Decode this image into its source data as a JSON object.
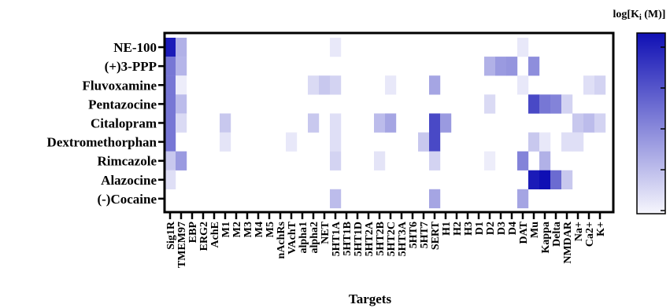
{
  "chart_data": {
    "type": "heatmap",
    "xlabel": "Targets",
    "colorbar_title": "log[Kᵢ (M)]",
    "colorbar_title_parts": {
      "main": "log[K",
      "sub": "i",
      "tail": " (M)]"
    },
    "colorscale": {
      "low": "#f6f6fd",
      "high": "#0f0fb4"
    },
    "grid": false,
    "legend": "colorbar right",
    "rows": [
      "NE-100",
      "(+)3-PPP",
      "Fluvoxamine",
      "Pentazocine",
      "Citalopram",
      "Dextromethorphan",
      "Rimcazole",
      "Alazocine",
      "(-)Cocaine"
    ],
    "columns": [
      "Sig1R",
      "TMEM97",
      "EBP",
      "ERG2",
      "AchE",
      "M1",
      "M2",
      "M3",
      "M4",
      "M5",
      "nAchRs",
      "VAchT",
      "alpha1",
      "alpha2",
      "NET",
      "5HT1A",
      "5HT1B",
      "5HT1D",
      "5HT2A",
      "5HT2B",
      "5HT2C",
      "5HT3A",
      "5HT6",
      "5HT7",
      "SERT",
      "H1",
      "H2",
      "H3",
      "D1",
      "D2",
      "D3",
      "D4",
      "DAT",
      "Mu",
      "Kappa",
      "Delta",
      "NMDAR",
      "Na+",
      "Ca2+",
      "K+"
    ],
    "cells": [
      {
        "row": 0,
        "col": 0,
        "v": 0.95
      },
      {
        "row": 0,
        "col": 1,
        "v": 0.3
      },
      {
        "row": 0,
        "col": 15,
        "v": 0.06
      },
      {
        "row": 0,
        "col": 32,
        "v": 0.06
      },
      {
        "row": 1,
        "col": 0,
        "v": 0.55
      },
      {
        "row": 1,
        "col": 1,
        "v": 0.28
      },
      {
        "row": 1,
        "col": 29,
        "v": 0.3
      },
      {
        "row": 1,
        "col": 30,
        "v": 0.4
      },
      {
        "row": 1,
        "col": 31,
        "v": 0.42
      },
      {
        "row": 1,
        "col": 33,
        "v": 0.45
      },
      {
        "row": 2,
        "col": 0,
        "v": 0.55
      },
      {
        "row": 2,
        "col": 1,
        "v": 0.04
      },
      {
        "row": 2,
        "col": 13,
        "v": 0.12
      },
      {
        "row": 2,
        "col": 14,
        "v": 0.2
      },
      {
        "row": 2,
        "col": 15,
        "v": 0.15
      },
      {
        "row": 2,
        "col": 20,
        "v": 0.06
      },
      {
        "row": 2,
        "col": 24,
        "v": 0.35
      },
      {
        "row": 2,
        "col": 32,
        "v": 0.06
      },
      {
        "row": 2,
        "col": 38,
        "v": 0.1
      },
      {
        "row": 2,
        "col": 39,
        "v": 0.15
      },
      {
        "row": 3,
        "col": 0,
        "v": 0.55
      },
      {
        "row": 3,
        "col": 1,
        "v": 0.25
      },
      {
        "row": 3,
        "col": 29,
        "v": 0.12
      },
      {
        "row": 3,
        "col": 33,
        "v": 0.75
      },
      {
        "row": 3,
        "col": 34,
        "v": 0.55
      },
      {
        "row": 3,
        "col": 35,
        "v": 0.5
      },
      {
        "row": 3,
        "col": 36,
        "v": 0.15
      },
      {
        "row": 4,
        "col": 0,
        "v": 0.55
      },
      {
        "row": 4,
        "col": 1,
        "v": 0.12
      },
      {
        "row": 4,
        "col": 5,
        "v": 0.2
      },
      {
        "row": 4,
        "col": 13,
        "v": 0.2
      },
      {
        "row": 4,
        "col": 15,
        "v": 0.1
      },
      {
        "row": 4,
        "col": 19,
        "v": 0.25
      },
      {
        "row": 4,
        "col": 20,
        "v": 0.35
      },
      {
        "row": 4,
        "col": 24,
        "v": 0.75
      },
      {
        "row": 4,
        "col": 25,
        "v": 0.4
      },
      {
        "row": 4,
        "col": 37,
        "v": 0.2
      },
      {
        "row": 4,
        "col": 38,
        "v": 0.25
      },
      {
        "row": 4,
        "col": 39,
        "v": 0.15
      },
      {
        "row": 5,
        "col": 0,
        "v": 0.55
      },
      {
        "row": 5,
        "col": 5,
        "v": 0.08
      },
      {
        "row": 5,
        "col": 11,
        "v": 0.06
      },
      {
        "row": 5,
        "col": 15,
        "v": 0.1
      },
      {
        "row": 5,
        "col": 23,
        "v": 0.2
      },
      {
        "row": 5,
        "col": 24,
        "v": 0.75
      },
      {
        "row": 5,
        "col": 33,
        "v": 0.2
      },
      {
        "row": 5,
        "col": 34,
        "v": 0.06
      },
      {
        "row": 5,
        "col": 36,
        "v": 0.1
      },
      {
        "row": 5,
        "col": 37,
        "v": 0.1
      },
      {
        "row": 6,
        "col": 0,
        "v": 0.2
      },
      {
        "row": 6,
        "col": 1,
        "v": 0.4
      },
      {
        "row": 6,
        "col": 15,
        "v": 0.15
      },
      {
        "row": 6,
        "col": 19,
        "v": 0.08
      },
      {
        "row": 6,
        "col": 24,
        "v": 0.15
      },
      {
        "row": 6,
        "col": 29,
        "v": 0.04
      },
      {
        "row": 6,
        "col": 32,
        "v": 0.5
      },
      {
        "row": 6,
        "col": 34,
        "v": 0.3
      },
      {
        "row": 7,
        "col": 0,
        "v": 0.1
      },
      {
        "row": 7,
        "col": 33,
        "v": 0.95
      },
      {
        "row": 7,
        "col": 34,
        "v": 1.0
      },
      {
        "row": 7,
        "col": 35,
        "v": 0.6
      },
      {
        "row": 7,
        "col": 36,
        "v": 0.2
      },
      {
        "row": 8,
        "col": 15,
        "v": 0.25
      },
      {
        "row": 8,
        "col": 24,
        "v": 0.35
      },
      {
        "row": 8,
        "col": 32,
        "v": 0.35
      }
    ]
  }
}
